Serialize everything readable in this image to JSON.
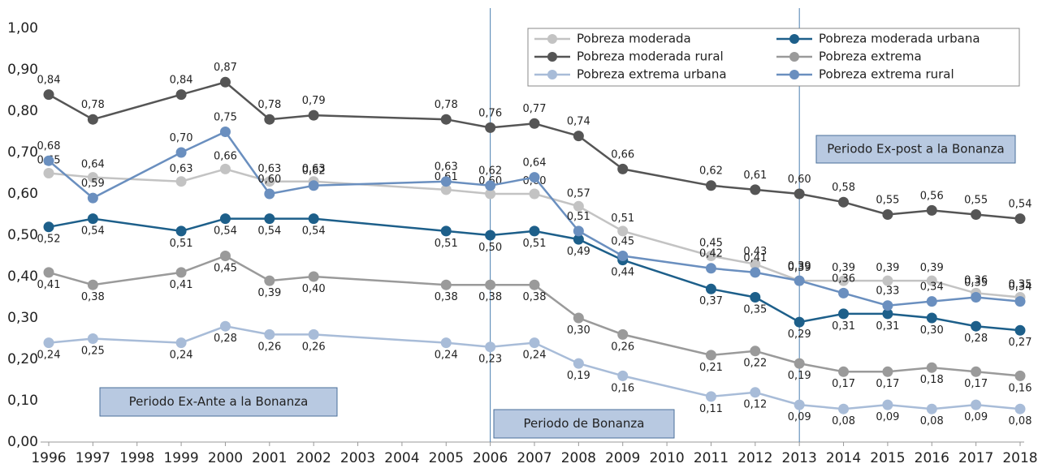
{
  "chart_data": {
    "type": "line",
    "x": [
      1996,
      1997,
      1999,
      2000,
      2001,
      2002,
      2005,
      2006,
      2007,
      2008,
      2009,
      2011,
      2012,
      2013,
      2014,
      2015,
      2016,
      2017,
      2018
    ],
    "xlim": [
      1996,
      2018
    ],
    "xticks": [
      1996,
      1997,
      1998,
      1999,
      2000,
      2001,
      2002,
      2003,
      2004,
      2005,
      2006,
      2007,
      2008,
      2009,
      2010,
      2011,
      2012,
      2013,
      2014,
      2015,
      2016,
      2017,
      2018
    ],
    "ylim": [
      0,
      1
    ],
    "yticks": [
      {
        "value": 0,
        "label": "0,00"
      },
      {
        "value": 0.1,
        "label": "0,10"
      },
      {
        "value": 0.2,
        "label": "0,20"
      },
      {
        "value": 0.3,
        "label": "0,30"
      },
      {
        "value": 0.4,
        "label": "0,40"
      },
      {
        "value": 0.5,
        "label": "0,50"
      },
      {
        "value": 0.6,
        "label": "0,60"
      },
      {
        "value": 0.7,
        "label": "0,70"
      },
      {
        "value": 0.8,
        "label": "0,80"
      },
      {
        "value": 0.9,
        "label": "0,90"
      },
      {
        "value": 1,
        "label": "1,00"
      }
    ],
    "legend": "upper right",
    "series": [
      {
        "name": "Pobreza moderada",
        "color": "#c3c3c3",
        "values": [
          0.65,
          0.64,
          0.63,
          0.66,
          0.63,
          0.63,
          0.61,
          0.6,
          0.6,
          0.57,
          0.51,
          0.45,
          0.43,
          0.39,
          0.39,
          0.39,
          0.39,
          0.36,
          0.35
        ],
        "value_labels": [
          "0,65",
          "0,64",
          "0,63",
          "0,66",
          "0,63",
          "0,63",
          "0,61",
          "0,60",
          "0,60",
          "0,57",
          "0,51",
          "0,45",
          "0,43",
          "0,39",
          "0,39",
          "0,39",
          "0,39",
          "0,36",
          "0,35"
        ]
      },
      {
        "name": "Pobreza moderada urbana",
        "color": "#1d5f8a",
        "values": [
          0.52,
          0.54,
          0.51,
          0.54,
          0.54,
          0.54,
          0.51,
          0.5,
          0.51,
          0.49,
          0.44,
          0.37,
          0.35,
          0.29,
          0.31,
          0.31,
          0.3,
          0.28,
          0.27
        ],
        "value_labels": [
          "0,52",
          "0,54",
          "0,51",
          "0,54",
          "0,54",
          "0,54",
          "0,51",
          "0,50",
          "0,51",
          "0,49",
          "0,44",
          "0,37",
          "0,35",
          "0,29",
          "0,31",
          "0,31",
          "0,30",
          "0,28",
          "0,27"
        ]
      },
      {
        "name": "Pobreza moderada rural",
        "color": "#555555",
        "values": [
          0.84,
          0.78,
          0.84,
          0.87,
          0.78,
          0.79,
          0.78,
          0.76,
          0.77,
          0.74,
          0.66,
          0.62,
          0.61,
          0.6,
          0.58,
          0.55,
          0.56,
          0.55,
          0.54
        ],
        "value_labels": [
          "0,84",
          "0,78",
          "0,84",
          "0,87",
          "0,78",
          "0,79",
          "0,78",
          "0,76",
          "0,77",
          "0,74",
          "0,66",
          "0,62",
          "0,61",
          "0,60",
          "0,58",
          "0,55",
          "0,56",
          "0,55",
          "0,54"
        ]
      },
      {
        "name": "Pobreza extrema",
        "color": "#9a9a9a",
        "values": [
          0.41,
          0.38,
          0.41,
          0.45,
          0.39,
          0.4,
          0.38,
          0.38,
          0.38,
          0.3,
          0.26,
          0.21,
          0.22,
          0.19,
          0.17,
          0.17,
          0.18,
          0.17,
          0.16
        ],
        "value_labels": [
          "0,41",
          "0,38",
          "0,41",
          "0,45",
          "0,39",
          "0,40",
          "0,38",
          "0,38",
          "0,38",
          "0,30",
          "0,26",
          "0,21",
          "0,22",
          "0,19",
          "0,17",
          "0,17",
          "0,18",
          "0,17",
          "0,16"
        ]
      },
      {
        "name": "Pobreza extrema urbana",
        "color": "#a8bcd8",
        "values": [
          0.24,
          0.25,
          0.24,
          0.28,
          0.26,
          0.26,
          0.24,
          0.23,
          0.24,
          0.19,
          0.16,
          0.11,
          0.12,
          0.09,
          0.08,
          0.09,
          0.08,
          0.09,
          0.08
        ],
        "value_labels": [
          "0,24",
          "0,25",
          "0,24",
          "0,28",
          "0,26",
          "0,26",
          "0,24",
          "0,23",
          "0,24",
          "0,19",
          "0,16",
          "0,11",
          "0,12",
          "0,09",
          "0,08",
          "0,09",
          "0,08",
          "0,09",
          "0,08"
        ]
      },
      {
        "name": "Pobreza extrema rural",
        "color": "#6a8fbf",
        "values": [
          0.68,
          0.59,
          0.7,
          0.75,
          0.6,
          0.62,
          0.63,
          0.62,
          0.64,
          0.51,
          0.45,
          0.42,
          0.41,
          0.39,
          0.36,
          0.33,
          0.34,
          0.35,
          0.34
        ],
        "value_labels": [
          "0,68",
          "0,59",
          "0,70",
          "0,75",
          "0,60",
          "0,62",
          "0,63",
          "0,62",
          "0,64",
          "0,51",
          "0,45",
          "0,42",
          "0,41",
          "0,39",
          "0,36",
          "0,33",
          "0,34",
          "0,35",
          "0,34"
        ]
      }
    ],
    "reference_lines": [
      2006,
      2013
    ],
    "annotations": [
      "Periodo Ex-Ante a la Bonanza",
      "Periodo de Bonanza",
      "Periodo Ex-post a la Bonanza"
    ]
  }
}
